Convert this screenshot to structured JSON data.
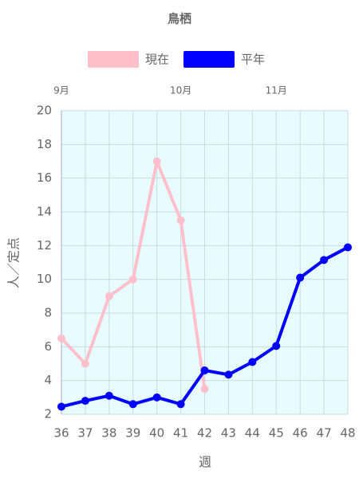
{
  "chart_data": {
    "type": "line",
    "title": "鳥栖",
    "x_label": "週",
    "y_label": "人／定点",
    "x": [
      36,
      37,
      38,
      39,
      40,
      41,
      42,
      43,
      44,
      45,
      46,
      47,
      48
    ],
    "xlim": [
      36,
      48
    ],
    "xticks": [
      36,
      37,
      38,
      39,
      40,
      41,
      42,
      43,
      44,
      45,
      46,
      47,
      48
    ],
    "ylim": [
      2,
      20
    ],
    "yticks": [
      2,
      4,
      6,
      8,
      10,
      12,
      14,
      16,
      18,
      20
    ],
    "grid": true,
    "month_labels": [
      {
        "x": 36,
        "label": "9月"
      },
      {
        "x": 41,
        "label": "10月"
      },
      {
        "x": 45,
        "label": "11月"
      }
    ],
    "series": [
      {
        "name": "現在",
        "color": "#ffc0cb",
        "values": [
          6.5,
          5.0,
          9.0,
          10.0,
          17.0,
          13.5,
          3.5,
          null,
          null,
          null,
          null,
          null,
          null
        ]
      },
      {
        "name": "平年",
        "color": "#0000ff",
        "values": [
          2.45,
          2.8,
          3.1,
          2.6,
          3.0,
          2.6,
          4.6,
          4.35,
          5.1,
          6.05,
          10.1,
          11.15,
          11.9
        ]
      }
    ]
  }
}
